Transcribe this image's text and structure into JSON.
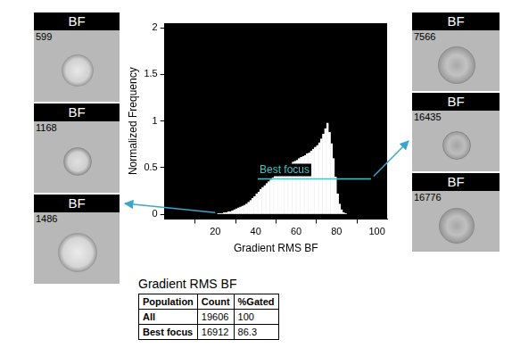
{
  "chart_data": {
    "type": "histogram",
    "x_label": "Gradient RMS BF",
    "y_label": "Normalized Frequency",
    "bins": [
      20,
      21,
      22,
      23,
      24,
      25,
      26,
      27,
      28,
      29,
      30,
      31,
      32,
      33,
      34,
      35,
      36,
      37,
      38,
      39,
      40,
      41,
      42,
      43,
      44,
      45,
      46,
      47,
      48,
      49,
      50,
      51,
      52,
      53,
      54,
      55,
      56,
      57,
      58,
      59,
      60,
      61,
      62,
      63,
      64,
      65,
      66,
      67,
      68,
      69,
      70,
      71,
      72,
      73,
      74,
      75,
      76,
      77,
      78,
      79,
      80,
      81,
      82,
      83,
      84,
      85,
      86
    ],
    "counts": [
      0.0,
      0.01,
      0.01,
      0.01,
      0.02,
      0.02,
      0.03,
      0.03,
      0.04,
      0.05,
      0.06,
      0.07,
      0.08,
      0.09,
      0.1,
      0.11,
      0.13,
      0.15,
      0.17,
      0.19,
      0.22,
      0.24,
      0.27,
      0.29,
      0.31,
      0.33,
      0.35,
      0.37,
      0.39,
      0.41,
      0.43,
      0.45,
      0.46,
      0.48,
      0.5,
      0.51,
      0.53,
      0.54,
      0.56,
      0.57,
      0.58,
      0.6,
      0.61,
      0.62,
      0.63,
      0.65,
      0.66,
      0.68,
      0.7,
      0.72,
      0.74,
      0.77,
      0.81,
      0.86,
      0.92,
      0.98,
      0.88,
      0.76,
      0.6,
      0.4,
      0.22,
      0.11,
      0.05,
      0.02,
      0.01,
      0.0
    ],
    "color": "#ffffff",
    "xlim": [
      -5,
      105
    ],
    "xticks": [
      20,
      40,
      60,
      80,
      100
    ],
    "ylim": [
      -0.05,
      2.05
    ],
    "yticks": [
      0,
      0.5,
      1,
      1.5,
      2
    ],
    "grid": false,
    "annotations": [
      {
        "label": "Best focus",
        "x_range": [
          41,
          97
        ],
        "y": 0.38,
        "color": "#3cc8c8"
      }
    ]
  },
  "image_panels": {
    "left": [
      {
        "header": "BF",
        "id": 599
      },
      {
        "header": "BF",
        "id": 1168
      },
      {
        "header": "BF",
        "id": 1486
      }
    ],
    "right": [
      {
        "header": "BF",
        "id": 7566
      },
      {
        "header": "BF",
        "id": 16435
      },
      {
        "header": "BF",
        "id": 16776
      }
    ]
  },
  "table": {
    "title": "Gradient RMS BF",
    "columns": [
      "Population",
      "Count",
      "%Gated"
    ],
    "rows": [
      [
        "All",
        19606,
        100
      ],
      [
        "Best focus",
        16912,
        86.3
      ]
    ]
  }
}
